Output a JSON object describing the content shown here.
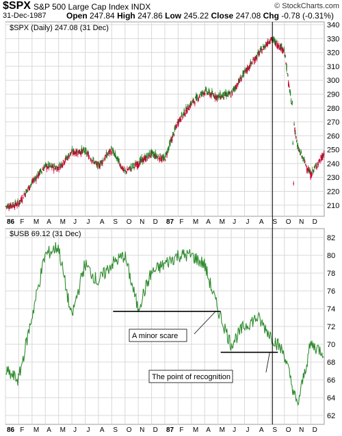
{
  "header": {
    "symbol": "$SPX",
    "name": "S&P 500 Large Cap Index",
    "exchange": "INDX",
    "brand": "© StockCharts.com",
    "date": "31-Dec-1987",
    "open_label": "Open",
    "open": "247.84",
    "high_label": "High",
    "high": "247.86",
    "low_label": "Low",
    "low": "245.22",
    "close_label": "Close",
    "close": "247.08",
    "chg_label": "Chg",
    "chg": "-0.78 (-0.31%)",
    "chg_arrow": "▼"
  },
  "colors": {
    "up_candle": "#1e7a1e",
    "down_candle": "#cc0033",
    "usb_line": "#2e8b2e",
    "grid": "#d8d8d8",
    "marker_line": "#000000"
  },
  "chart_data": [
    {
      "type": "candlestick",
      "legend": "$SPX (Daily) 247.08 (31 Dec)",
      "x_tick_labels": [
        "86",
        "F",
        "M",
        "A",
        "M",
        "J",
        "J",
        "A",
        "S",
        "O",
        "N",
        "D",
        "87",
        "F",
        "M",
        "A",
        "M",
        "J",
        "J",
        "A",
        "S",
        "O",
        "N",
        "D"
      ],
      "y_ticks": [
        210,
        220,
        230,
        240,
        250,
        260,
        270,
        280,
        290,
        300,
        310,
        320,
        330,
        340
      ],
      "ylim": [
        202,
        342
      ],
      "grid": true,
      "legend_position": "top-left",
      "x": [
        "86-01",
        "86-02",
        "86-03",
        "86-04",
        "86-05",
        "86-06",
        "86-07",
        "86-08",
        "86-09",
        "86-10",
        "86-11",
        "86-12",
        "87-01",
        "87-02",
        "87-03",
        "87-04",
        "87-05",
        "87-06",
        "87-07",
        "87-08",
        "87-09",
        "87-10",
        "87-11",
        "87-12"
      ],
      "close": [
        211,
        226,
        238,
        237,
        248,
        249,
        238,
        250,
        234,
        240,
        247,
        243,
        270,
        283,
        292,
        288,
        290,
        305,
        318,
        330,
        322,
        252,
        232,
        247
      ]
    },
    {
      "type": "line",
      "legend": "$USB 69.12 (31 Dec)",
      "x_tick_labels": [
        "86",
        "F",
        "M",
        "A",
        "M",
        "J",
        "J",
        "A",
        "S",
        "O",
        "N",
        "D",
        "87",
        "F",
        "M",
        "A",
        "M",
        "J",
        "J",
        "A",
        "S",
        "O",
        "N",
        "D"
      ],
      "y_ticks": [
        62,
        64,
        66,
        68,
        70,
        72,
        74,
        76,
        78,
        80,
        82
      ],
      "ylim": [
        61,
        83
      ],
      "grid": true,
      "legend_position": "top-left",
      "x": [
        "86-01",
        "86-02",
        "86-03",
        "86-04",
        "86-05",
        "86-06",
        "86-07",
        "86-08",
        "86-09",
        "86-10",
        "86-11",
        "86-12",
        "87-01",
        "87-02",
        "87-03",
        "87-04",
        "87-05",
        "87-06",
        "87-07",
        "87-08",
        "87-09",
        "87-10",
        "87-11",
        "87-12"
      ],
      "values": [
        66,
        73,
        80,
        81,
        73,
        79,
        77,
        79,
        80,
        74,
        78,
        79,
        80,
        80,
        79,
        74,
        70,
        72,
        73,
        71,
        69,
        63,
        70,
        69.12
      ],
      "annotations": [
        {
          "text": "A minor scare",
          "level": 73.7
        },
        {
          "text": "The point of recognition",
          "level": 69.1
        }
      ]
    }
  ]
}
